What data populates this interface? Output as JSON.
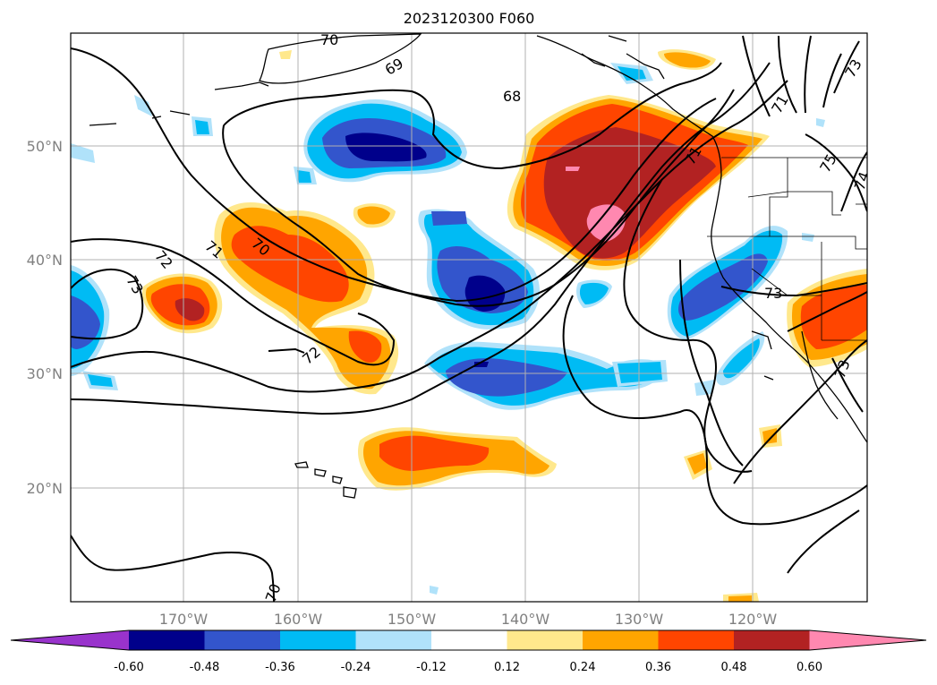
{
  "title": "2023120300 F060",
  "map": {
    "lat_labels": [
      "50°N",
      "40°N",
      "30°N",
      "20°N"
    ],
    "lon_labels": [
      "170°W",
      "160°W",
      "150°W",
      "140°W",
      "130°W",
      "120°W"
    ],
    "contour_labels": [
      "69",
      "70",
      "68",
      "71",
      "72",
      "73",
      "70",
      "71",
      "72",
      "73",
      "70",
      "73",
      "73",
      "74",
      "75",
      "71"
    ]
  },
  "colorbar": {
    "tick_labels": [
      "-0.60",
      "-0.48",
      "-0.36",
      "-0.24",
      "-0.12",
      "0.12",
      "0.24",
      "0.36",
      "0.48",
      "0.60"
    ],
    "colors": [
      "#9933cc",
      "#00008b",
      "#3355cc",
      "#00bbf4",
      "#b0e2fa",
      "#ffffff",
      "#ffe88c",
      "#ffa500",
      "#ff4500",
      "#b22222",
      "#ff88b0"
    ]
  }
}
